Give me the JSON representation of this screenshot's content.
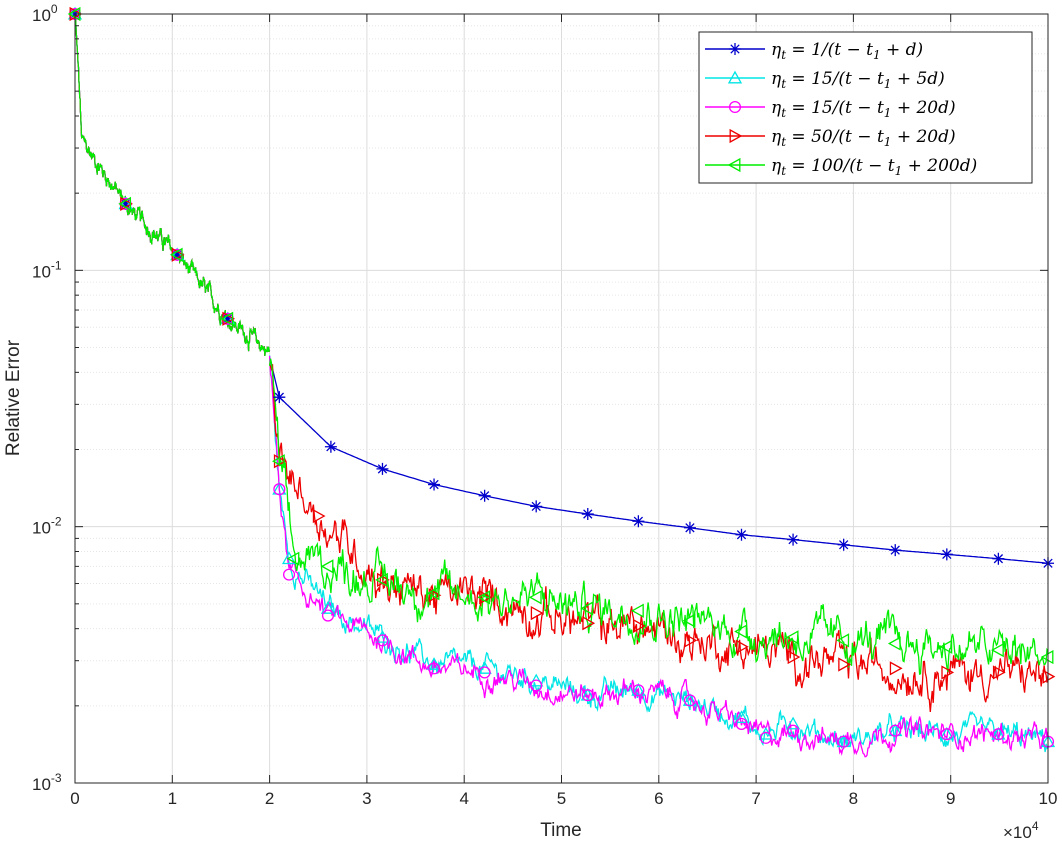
{
  "chart_data": {
    "type": "line",
    "title": "",
    "xlabel": "Time",
    "ylabel": "Relative Error",
    "x_exponent_label": "×10",
    "x_exponent_power": "4",
    "xlim": [
      0,
      10
    ],
    "ylim": [
      0.001,
      1
    ],
    "yscale": "log",
    "grid": true,
    "legend_position": "top-right",
    "x_ticks": [
      0,
      1,
      2,
      3,
      4,
      5,
      6,
      7,
      8,
      9,
      10
    ],
    "x_tick_labels": [
      "0",
      "1",
      "2",
      "3",
      "4",
      "5",
      "6",
      "7",
      "8",
      "9",
      "10"
    ],
    "y_ticks": [
      {
        "value": 1,
        "base": "10",
        "exp": "0"
      },
      {
        "value": 0.1,
        "base": "10",
        "exp": "-1"
      },
      {
        "value": 0.01,
        "base": "10",
        "exp": "-2"
      },
      {
        "value": 0.001,
        "base": "10",
        "exp": "-3"
      }
    ],
    "shared_prefix": {
      "x": [
        0,
        0.04,
        0.07,
        0.55,
        1.05,
        1.58,
        2.0
      ],
      "y": [
        1.0,
        0.55,
        0.32,
        0.175,
        0.115,
        0.064,
        0.048
      ]
    },
    "series": [
      {
        "name": "ηt = 1/(t − t1 + d)",
        "color": "#0000cc",
        "marker": "star",
        "noise": 0,
        "x": [
          2.0,
          2.1,
          2.63,
          3.16,
          3.69,
          4.21,
          4.74,
          5.27,
          5.79,
          6.32,
          6.85,
          7.38,
          7.9,
          8.43,
          8.96,
          9.49,
          10.0
        ],
        "y": [
          0.046,
          0.032,
          0.0205,
          0.0168,
          0.0146,
          0.0132,
          0.012,
          0.0112,
          0.0105,
          0.0099,
          0.0093,
          0.0089,
          0.0085,
          0.0081,
          0.0078,
          0.0075,
          0.0072
        ]
      },
      {
        "name": "ηt = 15/(t − t1 + 5d)",
        "color": "#00e5e5",
        "marker": "triangle-up",
        "noise": 0.035,
        "x": [
          2.0,
          2.1,
          2.2,
          2.6,
          3.16,
          3.69,
          4.21,
          4.74,
          5.27,
          5.79,
          6.32,
          6.85,
          7.1,
          7.38,
          7.9,
          8.43,
          8.96,
          9.49,
          10.0
        ],
        "y": [
          0.046,
          0.014,
          0.0075,
          0.0048,
          0.0037,
          0.0029,
          0.0028,
          0.0025,
          0.0022,
          0.0023,
          0.0021,
          0.0018,
          0.00155,
          0.0017,
          0.00145,
          0.0016,
          0.00155,
          0.00155,
          0.00145
        ]
      },
      {
        "name": "ηt = 15/(t − t1 + 20d)",
        "color": "#ff00ff",
        "marker": "circle",
        "noise": 0.035,
        "x": [
          2.0,
          2.1,
          2.2,
          2.6,
          3.16,
          3.69,
          4.21,
          4.74,
          5.27,
          5.79,
          6.32,
          6.85,
          7.1,
          7.38,
          7.9,
          8.43,
          8.96,
          9.49,
          10.0
        ],
        "y": [
          0.046,
          0.014,
          0.0065,
          0.0045,
          0.0036,
          0.0028,
          0.0027,
          0.0024,
          0.0022,
          0.0023,
          0.0021,
          0.0017,
          0.0015,
          0.0016,
          0.00145,
          0.0016,
          0.00155,
          0.00155,
          0.00145
        ]
      },
      {
        "name": "ηt = 50/(t − t1 + 20d)",
        "color": "#ee0000",
        "marker": "triangle-right",
        "noise": 0.06,
        "x": [
          2.0,
          2.1,
          2.5,
          3.16,
          3.69,
          4.21,
          4.74,
          5.27,
          5.79,
          6.32,
          6.85,
          7.38,
          7.9,
          8.43,
          8.96,
          9.49,
          10.0
        ],
        "y": [
          0.046,
          0.018,
          0.011,
          0.0062,
          0.0054,
          0.0053,
          0.0046,
          0.0042,
          0.0041,
          0.0036,
          0.0034,
          0.0031,
          0.0029,
          0.0028,
          0.0027,
          0.0027,
          0.0026
        ]
      },
      {
        "name": "ηt = 100/(t − t1 + 200d)",
        "color": "#00ee00",
        "marker": "triangle-left",
        "noise": 0.06,
        "x": [
          2.0,
          2.1,
          2.25,
          2.6,
          3.16,
          3.69,
          4.21,
          4.74,
          5.27,
          5.79,
          6.32,
          6.85,
          7.38,
          7.9,
          8.43,
          8.96,
          9.49,
          10.0
        ],
        "y": [
          0.046,
          0.018,
          0.0075,
          0.007,
          0.0062,
          0.0055,
          0.0053,
          0.0053,
          0.0048,
          0.0047,
          0.0043,
          0.0039,
          0.0037,
          0.0036,
          0.0035,
          0.0034,
          0.0033,
          0.0031
        ]
      }
    ],
    "legend": [
      {
        "coef": "1",
        "add": "",
        "color": "#0000cc",
        "marker": "star"
      },
      {
        "coef": "15",
        "add": "5",
        "color": "#00e5e5",
        "marker": "triangle-up"
      },
      {
        "coef": "15",
        "add": "20",
        "color": "#ff00ff",
        "marker": "circle"
      },
      {
        "coef": "50",
        "add": "20",
        "color": "#ee0000",
        "marker": "triangle-right"
      },
      {
        "coef": "100",
        "add": "200",
        "color": "#00ee00",
        "marker": "triangle-left"
      }
    ]
  }
}
